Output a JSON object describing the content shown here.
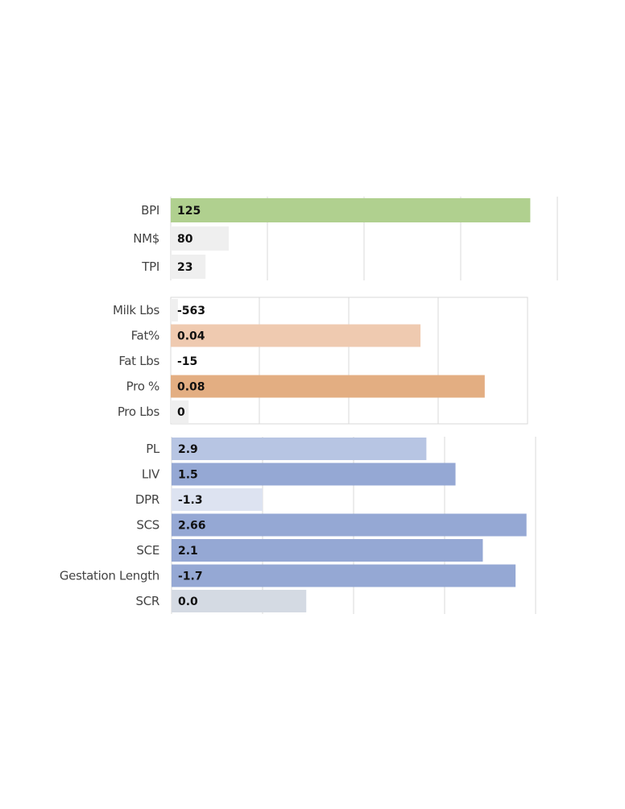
{
  "chart_data": [
    {
      "type": "bar",
      "orientation": "horizontal",
      "categories": [
        "BPI",
        "NM$",
        "TPI"
      ],
      "values": [
        125,
        80,
        23
      ],
      "value_labels": [
        "125",
        "80",
        "23"
      ],
      "bar_fill_fraction": [
        0.93,
        0.15,
        0.09
      ],
      "colors": [
        "#b0d08f",
        "#efefef",
        "#efefef"
      ],
      "grid": true
    },
    {
      "type": "bar",
      "orientation": "horizontal",
      "categories": [
        "Milk Lbs",
        "Fat%",
        "Fat Lbs",
        "Pro %",
        "Pro Lbs"
      ],
      "values": [
        -563,
        0.04,
        -15,
        0.08,
        0
      ],
      "value_labels": [
        "-563",
        "0.04",
        "-15",
        "0.08",
        "0"
      ],
      "bar_fill_fraction": [
        0.02,
        0.7,
        0.0,
        0.88,
        0.05
      ],
      "colors": [
        "#efefef",
        "#efcab0",
        "#efefef",
        "#e3ae82",
        "#efefef"
      ],
      "grid": true
    },
    {
      "type": "bar",
      "orientation": "horizontal",
      "categories": [
        "PL",
        "LIV",
        "DPR",
        "SCS",
        "SCE",
        "Gestation Length",
        "SCR"
      ],
      "values": [
        2.9,
        1.5,
        -1.3,
        2.66,
        2.1,
        -1.7,
        0.0
      ],
      "value_labels": [
        "2.9",
        "1.5",
        "-1.3",
        "2.66",
        "2.1",
        "-1.7",
        "0.0"
      ],
      "bar_fill_fraction": [
        0.7,
        0.78,
        0.25,
        0.975,
        0.855,
        0.945,
        0.37
      ],
      "colors": [
        "#b7c5e3",
        "#95a8d4",
        "#dde3f1",
        "#95a8d4",
        "#95a8d4",
        "#95a8d4",
        "#d4dae3"
      ],
      "grid": true
    }
  ]
}
